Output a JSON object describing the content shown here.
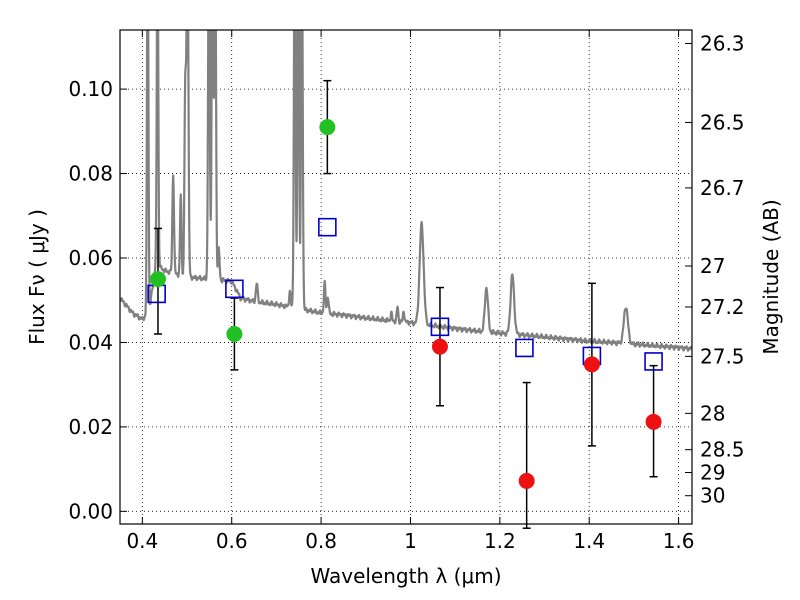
{
  "chart_data": {
    "type": "scatter",
    "xlabel": "Wavelength  λ (μm)",
    "ylabel": "Flux  Fν  ( μJy )",
    "ylabel_right": "Magnitude (AB)",
    "xlim": [
      0.35,
      1.63
    ],
    "ylim": [
      -0.003,
      0.114
    ],
    "x_ticks": [
      0.4,
      0.6,
      0.8,
      1.0,
      1.2,
      1.4,
      1.6
    ],
    "x_tick_labels": [
      "0.4",
      "0.6",
      "0.8",
      "1",
      "1.2",
      "1.4",
      "1.6"
    ],
    "y_ticks": [
      0.0,
      0.02,
      0.04,
      0.06,
      0.08,
      0.1
    ],
    "y_tick_labels": [
      "0.00",
      "0.02",
      "0.04",
      "0.06",
      "0.08",
      "0.10"
    ],
    "right_ticks": [
      {
        "label": "26.3",
        "flux": 0.1108
      },
      {
        "label": "26.5",
        "flux": 0.0921
      },
      {
        "label": "26.7",
        "flux": 0.0766
      },
      {
        "label": "27",
        "flux": 0.0581
      },
      {
        "label": "27.2",
        "flux": 0.0484
      },
      {
        "label": "27.5",
        "flux": 0.0367
      },
      {
        "label": "28",
        "flux": 0.0232
      },
      {
        "label": "28.5",
        "flux": 0.0146
      },
      {
        "label": "29",
        "flux": 0.0092
      },
      {
        "label": "30",
        "flux": 0.0037
      }
    ],
    "grid": true,
    "colors": {
      "model": "#808080",
      "green": "#22c022",
      "red": "#ee1111",
      "blue": "#0000cc"
    },
    "series": [
      {
        "marker": "circle",
        "color": "#22c022",
        "points": [
          {
            "x": 0.435,
            "y": 0.055,
            "ylo": 0.042,
            "yhi": 0.067
          },
          {
            "x": 0.606,
            "y": 0.042,
            "ylo": 0.0335,
            "yhi": 0.0505
          },
          {
            "x": 0.814,
            "y": 0.091,
            "ylo": 0.08,
            "yhi": 0.102
          }
        ]
      },
      {
        "marker": "circle",
        "color": "#ee1111",
        "points": [
          {
            "x": 1.066,
            "y": 0.039,
            "ylo": 0.025,
            "yhi": 0.053
          },
          {
            "x": 1.26,
            "y": 0.0072,
            "ylo": -0.004,
            "yhi": 0.0305
          },
          {
            "x": 1.406,
            "y": 0.0348,
            "ylo": 0.0155,
            "yhi": 0.054
          },
          {
            "x": 1.544,
            "y": 0.0212,
            "ylo": 0.0082,
            "yhi": 0.0345
          }
        ]
      },
      {
        "marker": "open-square",
        "color": "#0000cc",
        "points": [
          {
            "x": 0.432,
            "y": 0.0515
          },
          {
            "x": 0.606,
            "y": 0.0527
          },
          {
            "x": 0.814,
            "y": 0.0673
          },
          {
            "x": 1.066,
            "y": 0.0437
          },
          {
            "x": 1.255,
            "y": 0.0387
          },
          {
            "x": 1.406,
            "y": 0.0368
          },
          {
            "x": 1.544,
            "y": 0.0355
          }
        ]
      },
      {
        "marker": "line",
        "color": "#808080",
        "continuum": [
          [
            0.35,
            0.0505
          ],
          [
            0.38,
            0.0468
          ],
          [
            0.4,
            0.0455
          ],
          [
            0.415,
            0.047
          ],
          [
            0.43,
            0.0585
          ],
          [
            0.45,
            0.057
          ],
          [
            0.5,
            0.0555
          ],
          [
            0.55,
            0.055
          ],
          [
            0.6,
            0.0545
          ],
          [
            0.62,
            0.0505
          ],
          [
            0.65,
            0.0497
          ],
          [
            0.7,
            0.049
          ],
          [
            0.75,
            0.048
          ],
          [
            0.8,
            0.047
          ],
          [
            0.85,
            0.0465
          ],
          [
            0.9,
            0.0458
          ],
          [
            0.95,
            0.0452
          ],
          [
            1.0,
            0.0447
          ],
          [
            1.05,
            0.044
          ],
          [
            1.1,
            0.0433
          ],
          [
            1.15,
            0.0427
          ],
          [
            1.2,
            0.0422
          ],
          [
            1.25,
            0.0418
          ],
          [
            1.3,
            0.0413
          ],
          [
            1.35,
            0.0408
          ],
          [
            1.4,
            0.0403
          ],
          [
            1.45,
            0.04
          ],
          [
            1.5,
            0.0396
          ],
          [
            1.55,
            0.0392
          ],
          [
            1.6,
            0.0388
          ],
          [
            1.63,
            0.0385
          ]
        ],
        "lines": [
          {
            "x": 0.412,
            "peak": 0.14,
            "w": 0.0016
          },
          {
            "x": 0.434,
            "peak": 0.14,
            "w": 0.0016
          },
          {
            "x": 0.469,
            "peak": 0.08,
            "w": 0.0018
          },
          {
            "x": 0.486,
            "peak": 0.075,
            "w": 0.0016
          },
          {
            "x": 0.496,
            "peak": 0.1,
            "w": 0.0018
          },
          {
            "x": 0.501,
            "peak": 0.14,
            "w": 0.002
          },
          {
            "x": 0.549,
            "peak": 0.14,
            "w": 0.0018
          },
          {
            "x": 0.557,
            "peak": 0.14,
            "w": 0.0018
          },
          {
            "x": 0.563,
            "peak": 0.14,
            "w": 0.0018
          },
          {
            "x": 0.571,
            "peak": 0.062,
            "w": 0.0018
          },
          {
            "x": 0.656,
            "peak": 0.054,
            "w": 0.002
          },
          {
            "x": 0.73,
            "peak": 0.052,
            "w": 0.0018
          },
          {
            "x": 0.741,
            "peak": 0.14,
            "w": 0.0018
          },
          {
            "x": 0.749,
            "peak": 0.14,
            "w": 0.0018
          },
          {
            "x": 0.757,
            "peak": 0.14,
            "w": 0.0018
          },
          {
            "x": 0.808,
            "peak": 0.054,
            "w": 0.0018
          },
          {
            "x": 0.815,
            "peak": 0.051,
            "w": 0.0018
          },
          {
            "x": 0.957,
            "peak": 0.047,
            "w": 0.0016
          },
          {
            "x": 0.971,
            "peak": 0.0485,
            "w": 0.0016
          },
          {
            "x": 0.985,
            "peak": 0.0475,
            "w": 0.0016
          },
          {
            "x": 1.025,
            "peak": 0.068,
            "w": 0.0045
          },
          {
            "x": 1.17,
            "peak": 0.053,
            "w": 0.0035
          },
          {
            "x": 1.228,
            "peak": 0.056,
            "w": 0.004
          },
          {
            "x": 1.482,
            "peak": 0.0485,
            "w": 0.0045
          }
        ]
      }
    ]
  }
}
